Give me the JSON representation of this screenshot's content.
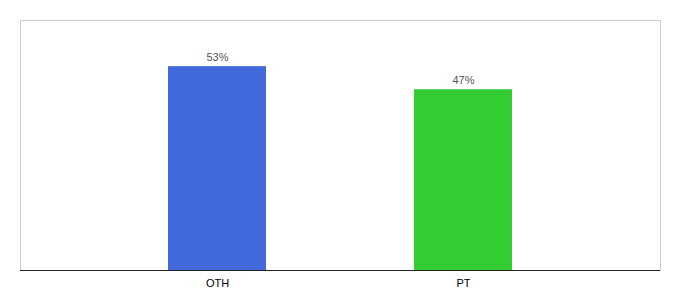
{
  "chart_data": {
    "type": "bar",
    "categories": [
      "OTH",
      "PT"
    ],
    "values": [
      53,
      47
    ],
    "value_labels": [
      "53%",
      "47%"
    ],
    "colors": [
      "#4169d9",
      "#33cc33"
    ],
    "ylim": [
      0,
      65
    ],
    "data_labels": true,
    "tick_labels": "x"
  }
}
